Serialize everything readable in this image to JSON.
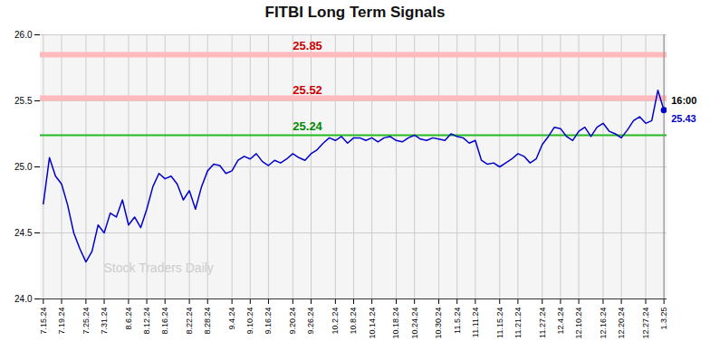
{
  "chart_data": {
    "type": "line",
    "title": "FITBI Long Term Signals",
    "categories": [
      "7.15.24",
      null,
      null,
      "7.19.24",
      null,
      null,
      null,
      "7.25.24",
      null,
      null,
      "7.31.24",
      null,
      null,
      null,
      "8.6.24",
      null,
      null,
      "8.12.24",
      null,
      null,
      "8.16.24",
      null,
      null,
      null,
      "8.22.24",
      null,
      null,
      "8.28.24",
      null,
      null,
      null,
      "9.4.24",
      null,
      null,
      "9.10.24",
      null,
      null,
      "9.16.24",
      null,
      null,
      null,
      "9.20.24",
      null,
      null,
      "9.26.24",
      null,
      null,
      null,
      "10.2.24",
      null,
      null,
      "10.8.24",
      null,
      null,
      "10.14.24",
      null,
      null,
      null,
      "10.18.24",
      null,
      null,
      "10.24.24",
      null,
      null,
      null,
      "10.30.24",
      null,
      null,
      "11.5.24",
      null,
      null,
      "11.11.24",
      null,
      null,
      null,
      "11.15.24",
      null,
      null,
      "11.21.24",
      null,
      null,
      null,
      "11.27.24",
      null,
      null,
      "12.4.24",
      null,
      null,
      "12.10.24",
      null,
      null,
      null,
      "12.16.24",
      null,
      null,
      "12.20.24",
      null,
      null,
      null,
      "12.27.24",
      null,
      null,
      "1.3.25"
    ],
    "values": [
      24.72,
      25.07,
      24.93,
      24.87,
      24.71,
      24.5,
      24.38,
      24.28,
      24.36,
      24.56,
      24.5,
      24.65,
      24.62,
      24.75,
      24.56,
      24.62,
      24.54,
      24.68,
      24.85,
      24.95,
      24.91,
      24.93,
      24.87,
      24.75,
      24.82,
      24.68,
      24.85,
      24.97,
      25.02,
      25.01,
      24.95,
      24.97,
      25.05,
      25.08,
      25.06,
      25.1,
      25.04,
      25.01,
      25.05,
      25.03,
      25.06,
      25.1,
      25.07,
      25.05,
      25.1,
      25.13,
      25.18,
      25.22,
      25.2,
      25.23,
      25.18,
      25.22,
      25.22,
      25.2,
      25.22,
      25.19,
      25.22,
      25.23,
      25.2,
      25.19,
      25.22,
      25.24,
      25.21,
      25.2,
      25.22,
      25.21,
      25.2,
      25.25,
      25.23,
      25.22,
      25.18,
      25.2,
      25.05,
      25.02,
      25.03,
      25.0,
      25.03,
      25.06,
      25.1,
      25.08,
      25.03,
      25.06,
      25.17,
      25.23,
      25.3,
      25.29,
      25.23,
      25.2,
      25.27,
      25.3,
      25.23,
      25.3,
      25.33,
      25.27,
      25.25,
      25.22,
      25.28,
      25.35,
      25.38,
      25.33,
      25.35,
      25.58,
      25.43
    ],
    "color": "#0000cc",
    "ylim": [
      24.0,
      26.0
    ],
    "yticks": [
      {
        "value": 24.0,
        "label": "24.0"
      },
      24.5,
      {
        "value": 25.0,
        "label": "25.0"
      },
      25.5,
      {
        "value": 26.0,
        "label": "26.0"
      }
    ],
    "grid": true,
    "reference_lines": [
      {
        "value": 25.85,
        "color": "#ffbbbb",
        "label": "25.85",
        "label_color": "#cc0000"
      },
      {
        "value": 25.52,
        "color": "#ffbbbb",
        "label": "25.52",
        "label_color": "#cc0000"
      },
      {
        "value": 25.24,
        "color": "#22bb22",
        "label": "25.24",
        "label_color": "#008800"
      }
    ],
    "end_labels": [
      {
        "text": "16:00",
        "color": "#000000"
      },
      {
        "text": "25.43",
        "color": "#0000cc"
      }
    ],
    "watermark": "Stock Traders Daily"
  }
}
